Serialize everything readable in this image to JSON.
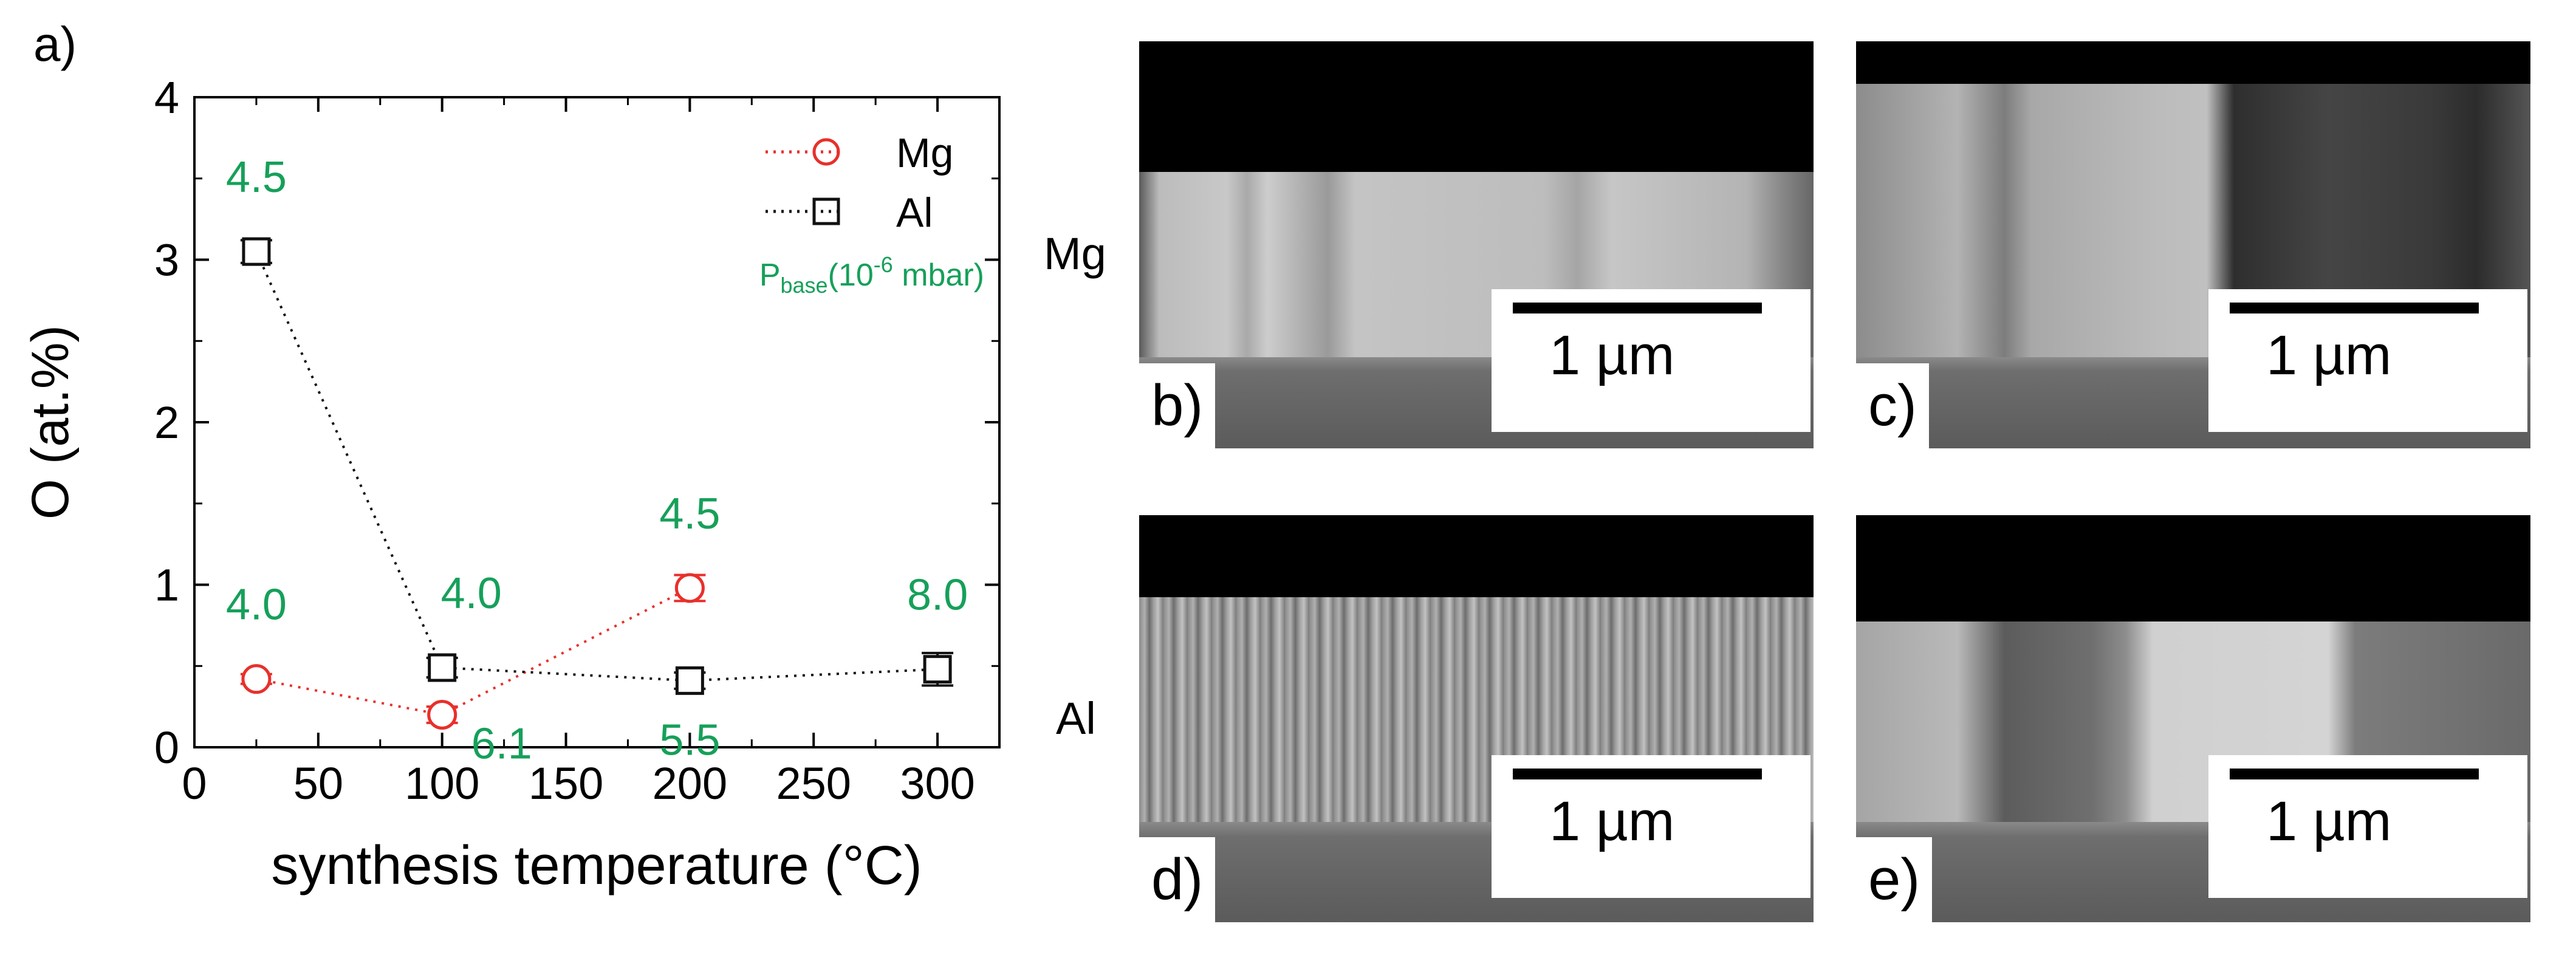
{
  "chart_data": {
    "type": "scatter",
    "panel_label": "a)",
    "xlabel": "synthesis temperature (°C)",
    "ylabel": "O (at.%)",
    "xlim": [
      0,
      325
    ],
    "ylim": [
      0,
      4
    ],
    "xticks": [
      "0",
      "50",
      "100",
      "150",
      "200",
      "250",
      "300"
    ],
    "yticks": [
      "0",
      "1",
      "2",
      "3",
      "4"
    ],
    "legend_position": "top-right",
    "legend_note": "P",
    "legend_note_sub": "base",
    "legend_note_rest": "(10",
    "legend_note_exp": "-6",
    "legend_note_end": " mbar)",
    "colors": {
      "Mg": "#e8302b",
      "Al": "#111111",
      "annotation": "#16a05a"
    },
    "series": [
      {
        "name": "Mg",
        "marker": "circle",
        "x": [
          25,
          100,
          200
        ],
        "y": [
          0.42,
          0.2,
          0.98
        ],
        "err": [
          0.03,
          0.05,
          0.08
        ],
        "pressure_labels": [
          "4.0",
          "6.1",
          "4.5"
        ]
      },
      {
        "name": "Al",
        "marker": "square",
        "x": [
          25,
          100,
          200,
          300
        ],
        "y": [
          3.05,
          0.49,
          0.41,
          0.48
        ],
        "err": [
          0.07,
          0.06,
          0.05,
          0.1
        ],
        "pressure_labels": [
          "4.5",
          "4.0",
          "5.5",
          "8.0"
        ]
      }
    ]
  },
  "images": {
    "row_labels": [
      "Mg",
      "Al"
    ],
    "panels": [
      {
        "label": "b)",
        "scale": "1 µm"
      },
      {
        "label": "c)",
        "scale": "1 µm"
      },
      {
        "label": "d)",
        "scale": "1 µm"
      },
      {
        "label": "e)",
        "scale": "1 µm"
      }
    ]
  }
}
